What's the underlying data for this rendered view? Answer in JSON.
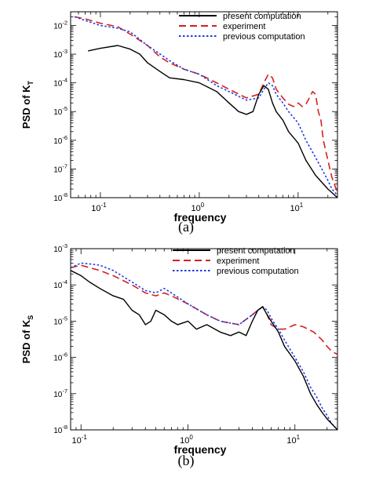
{
  "chart_data": [
    {
      "type": "line",
      "caption": "(a)",
      "xlabel": "frequency",
      "ylabel": "PSD of K",
      "ylabel_sub": "T",
      "xscale": "log",
      "yscale": "log",
      "xlim": [
        0.05,
        25
      ],
      "ylim": [
        1e-08,
        0.03
      ],
      "xticks": [
        {
          "value": 0.1,
          "base": "10",
          "exp": "-1"
        },
        {
          "value": 1,
          "base": "10",
          "exp": "0"
        },
        {
          "value": 10,
          "base": "10",
          "exp": "1"
        }
      ],
      "yticks": [
        {
          "value": 1e-08,
          "base": "10",
          "exp": "-8"
        },
        {
          "value": 1e-07,
          "base": "10",
          "exp": "-7"
        },
        {
          "value": 1e-06,
          "base": "10",
          "exp": "-6"
        },
        {
          "value": 1e-05,
          "base": "10",
          "exp": "-5"
        },
        {
          "value": 0.0001,
          "base": "10",
          "exp": "-4"
        },
        {
          "value": 0.001,
          "base": "10",
          "exp": "-3"
        },
        {
          "value": 0.01,
          "base": "10",
          "exp": "-2"
        }
      ],
      "legend_position": "top-right",
      "series": [
        {
          "name": "present computation",
          "color": "#000000",
          "dash": "solid",
          "x": [
            0.075,
            0.1,
            0.15,
            0.2,
            0.25,
            0.3,
            0.4,
            0.5,
            0.7,
            1,
            1.5,
            2,
            2.5,
            3,
            3.5,
            4,
            4.5,
            5,
            5.5,
            6,
            7,
            8,
            10,
            12,
            15,
            18,
            20,
            22,
            25
          ],
          "y": [
            0.0013,
            0.0016,
            0.002,
            0.0015,
            0.001,
            0.0005,
            0.00025,
            0.00015,
            0.00013,
            0.0001,
            5e-05,
            2e-05,
            1e-05,
            8e-06,
            1e-05,
            4e-05,
            8e-05,
            6e-05,
            2e-05,
            1e-05,
            5e-06,
            2e-06,
            8e-07,
            2e-07,
            6e-08,
            3e-08,
            2e-08,
            1.5e-08,
            1e-08
          ]
        },
        {
          "name": "experiment",
          "color": "#d42020",
          "dash": "dashed",
          "x": [
            0.055,
            0.07,
            0.1,
            0.15,
            0.2,
            0.3,
            0.4,
            0.5,
            0.7,
            1,
            1.5,
            2,
            3,
            4,
            4.5,
            5,
            5.5,
            6,
            7,
            8,
            9,
            10,
            11,
            12,
            13,
            14,
            15,
            16,
            17,
            18,
            20,
            22,
            25
          ],
          "y": [
            0.02,
            0.017,
            0.012,
            0.009,
            0.005,
            0.002,
            0.0008,
            0.0005,
            0.0003,
            0.0002,
            0.0001,
            6e-05,
            3e-05,
            4e-05,
            0.0001,
            0.0002,
            0.00015,
            6e-05,
            3e-05,
            1.8e-05,
            1.5e-05,
            2e-05,
            1.5e-05,
            1.8e-05,
            3e-05,
            5e-05,
            4e-05,
            1e-05,
            5e-06,
            1e-06,
            2e-07,
            5e-08,
            1.5e-08
          ]
        },
        {
          "name": "previous computation",
          "color": "#1f3ce6",
          "dash": "dotted",
          "x": [
            0.055,
            0.07,
            0.1,
            0.15,
            0.2,
            0.3,
            0.5,
            0.7,
            1,
            1.5,
            2,
            3,
            4,
            4.5,
            5,
            5.5,
            6,
            7,
            8,
            10,
            12,
            15,
            18,
            20,
            22,
            25
          ],
          "y": [
            0.02,
            0.015,
            0.01,
            0.008,
            0.006,
            0.002,
            0.0006,
            0.0003,
            0.0002,
            8e-05,
            5e-05,
            2.5e-05,
            3e-05,
            6e-05,
            0.0001,
            8e-05,
            4e-05,
            2e-05,
            1e-05,
            4e-06,
            1e-06,
            2.5e-07,
            8e-08,
            4e-08,
            2e-08,
            1.2e-08
          ]
        }
      ]
    },
    {
      "type": "line",
      "caption": "(b)",
      "xlabel": "frequency",
      "ylabel": "PSD of K",
      "ylabel_sub": "S",
      "xscale": "log",
      "yscale": "log",
      "xlim": [
        0.08,
        25
      ],
      "ylim": [
        1e-08,
        0.001
      ],
      "xticks": [
        {
          "value": 0.1,
          "base": "10",
          "exp": "-1"
        },
        {
          "value": 1,
          "base": "10",
          "exp": "0"
        },
        {
          "value": 10,
          "base": "10",
          "exp": "1"
        }
      ],
      "yticks": [
        {
          "value": 1e-08,
          "base": "10",
          "exp": "-8"
        },
        {
          "value": 1e-07,
          "base": "10",
          "exp": "-7"
        },
        {
          "value": 1e-06,
          "base": "10",
          "exp": "-6"
        },
        {
          "value": 1e-05,
          "base": "10",
          "exp": "-5"
        },
        {
          "value": 0.0001,
          "base": "10",
          "exp": "-4"
        },
        {
          "value": 0.001,
          "base": "10",
          "exp": "-3"
        }
      ],
      "legend_position": "top-right",
      "series": [
        {
          "name": "present computation",
          "color": "#000000",
          "dash": "solid",
          "x": [
            0.08,
            0.1,
            0.12,
            0.15,
            0.2,
            0.25,
            0.3,
            0.35,
            0.4,
            0.45,
            0.5,
            0.6,
            0.7,
            0.8,
            1,
            1.2,
            1.5,
            2,
            2.5,
            3,
            3.5,
            4,
            4.5,
            5,
            5.5,
            6,
            7,
            8,
            10,
            12,
            14,
            16,
            18,
            20,
            22,
            25
          ],
          "y": [
            0.00025,
            0.00018,
            0.00012,
            8e-05,
            5e-05,
            4e-05,
            2e-05,
            1.5e-05,
            8e-06,
            1e-05,
            2e-05,
            1.5e-05,
            1e-05,
            8e-06,
            1e-05,
            6e-06,
            8e-06,
            5e-06,
            4e-06,
            5e-06,
            4e-06,
            1e-05,
            2e-05,
            2.5e-05,
            1.5e-05,
            1e-05,
            5e-06,
            2e-06,
            8e-07,
            3e-07,
            1e-07,
            5e-08,
            3e-08,
            2e-08,
            1.5e-08,
            1e-08
          ]
        },
        {
          "name": "experiment",
          "color": "#d42020",
          "dash": "dashed",
          "x": [
            0.08,
            0.1,
            0.12,
            0.15,
            0.2,
            0.3,
            0.4,
            0.5,
            0.6,
            0.7,
            1,
            1.5,
            2,
            3,
            4,
            4.5,
            5,
            5.5,
            6,
            7,
            8,
            10,
            12,
            15,
            18,
            20,
            22,
            25
          ],
          "y": [
            0.0003,
            0.00035,
            0.0003,
            0.00025,
            0.00018,
            0.0001,
            6e-05,
            5e-05,
            6e-05,
            5e-05,
            3e-05,
            1.5e-05,
            1e-05,
            8e-06,
            1.5e-05,
            2e-05,
            2.5e-05,
            1.5e-05,
            8e-06,
            6e-06,
            6e-06,
            8e-06,
            7e-06,
            5e-06,
            3e-06,
            2e-06,
            1.5e-06,
            1.2e-06
          ]
        },
        {
          "name": "previous computation",
          "color": "#1f3ce6",
          "dash": "dotted",
          "x": [
            0.08,
            0.1,
            0.12,
            0.15,
            0.2,
            0.3,
            0.4,
            0.5,
            0.6,
            0.7,
            1,
            1.5,
            2,
            3,
            4,
            4.5,
            5,
            5.5,
            6,
            7,
            8,
            10,
            12,
            14,
            16,
            18,
            20,
            22,
            25
          ],
          "y": [
            0.0003,
            0.0004,
            0.00038,
            0.00035,
            0.00025,
            0.00012,
            7e-05,
            6e-05,
            8e-05,
            6e-05,
            3e-05,
            1.5e-05,
            1e-05,
            8e-06,
            1.5e-05,
            2e-05,
            2.5e-05,
            2e-05,
            1.2e-05,
            6e-06,
            3e-06,
            1e-06,
            4e-07,
            1.5e-07,
            8e-08,
            4e-08,
            2.5e-08,
            1.5e-08,
            1e-08
          ]
        }
      ]
    }
  ]
}
